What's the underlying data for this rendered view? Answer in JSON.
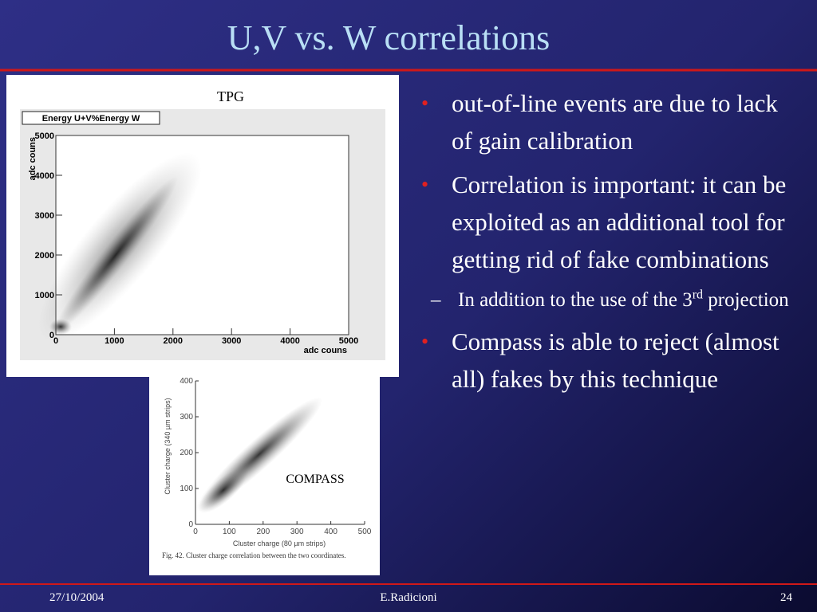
{
  "title": "U,V vs. W correlations",
  "figures": [
    {
      "caption": "TPG",
      "plot_title": "Energy U+V%Energy W",
      "x_label": "adc couns",
      "y_label": "adc couns",
      "xticks": [
        0,
        1000,
        2000,
        3000,
        4000,
        5000
      ],
      "yticks": [
        0,
        1000,
        2000,
        3000,
        4000,
        5000
      ]
    },
    {
      "caption": "COMPASS",
      "x_label": "Cluster charge (80 µm strips)",
      "y_label": "Cluster charge (340 µm strips)",
      "xticks": [
        0,
        100,
        200,
        300,
        400,
        500
      ],
      "yticks": [
        0,
        100,
        200,
        300,
        400
      ],
      "figure_caption": "Fig. 42. Cluster charge correlation between the two coordinates."
    }
  ],
  "bullets": [
    {
      "text": "out-of-line events are due to lack of gain calibration"
    },
    {
      "text": "Correlation is important: it can be exploited as an additional tool for getting rid of fake combinations",
      "sub": [
        {
          "before": "In addition to the use of the 3",
          "sup": "rd",
          "after": " projection"
        }
      ]
    },
    {
      "text": "Compass is able to reject (almost all) fakes by this technique"
    }
  ],
  "footer": {
    "date": "27/10/2004",
    "author": "E.Radicioni",
    "page": "24"
  }
}
